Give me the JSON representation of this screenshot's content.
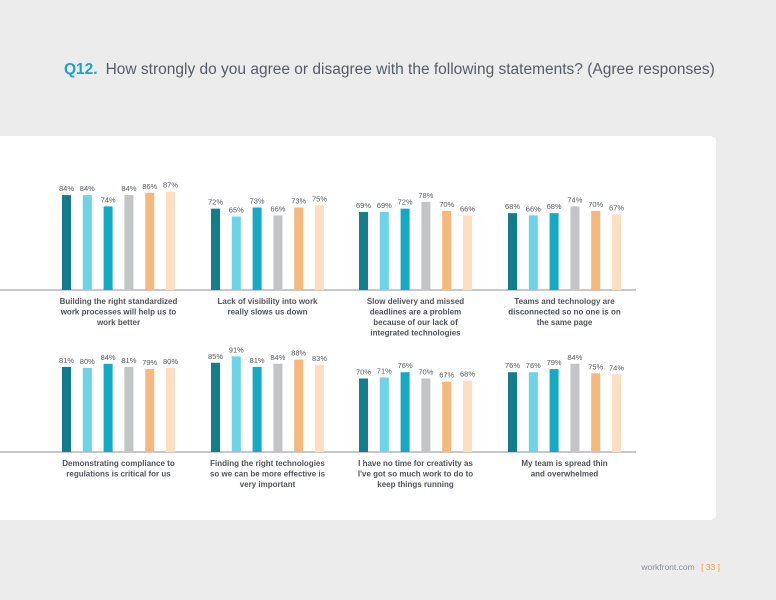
{
  "header": {
    "number": "Q12.",
    "question": "How strongly do you agree or disagree with the following statements? (Agree responses)"
  },
  "footer": {
    "site": "workfront.com",
    "page": "[ 33 ]"
  },
  "colors": [
    "#137d8c",
    "#6dd3e6",
    "#16a9c3",
    "#c3c4c6",
    "#f7b87e",
    "#fbdfc0"
  ],
  "chart_data": {
    "type": "bar",
    "title": "Q12. How strongly do you agree or disagree with the following statements? (Agree responses)",
    "ylim": [
      0,
      100
    ],
    "groups": [
      {
        "label": [
          "Building the right standardized",
          "work processes will help us to",
          "work better"
        ],
        "values": [
          84,
          84,
          74,
          84,
          86,
          87
        ]
      },
      {
        "label": [
          "Lack of visibility into work",
          "really slows us down"
        ],
        "values": [
          72,
          65,
          73,
          66,
          73,
          75
        ]
      },
      {
        "label": [
          "Slow delivery and missed",
          "deadlines are a problem",
          "because of our lack of",
          "integrated technologies"
        ],
        "values": [
          69,
          69,
          72,
          78,
          70,
          66
        ]
      },
      {
        "label": [
          "Teams and technology are",
          "disconnected so no one is on",
          "the same page"
        ],
        "values": [
          68,
          66,
          68,
          74,
          70,
          67
        ]
      },
      {
        "label": [
          "Demonstrating compliance to",
          "regulations is critical for us"
        ],
        "values": [
          81,
          80,
          84,
          81,
          79,
          80
        ]
      },
      {
        "label": [
          "Finding the right technologies",
          "so we can be more effective is",
          "very important"
        ],
        "values": [
          85,
          91,
          81,
          84,
          88,
          83
        ]
      },
      {
        "label": [
          "I have no time for creativity as",
          "I've got so much work to do to",
          "keep things running"
        ],
        "values": [
          70,
          71,
          76,
          70,
          67,
          68
        ]
      },
      {
        "label": [
          "My team is spread thin",
          "and overwhelmed"
        ],
        "values": [
          76,
          76,
          79,
          84,
          75,
          74
        ]
      }
    ]
  }
}
